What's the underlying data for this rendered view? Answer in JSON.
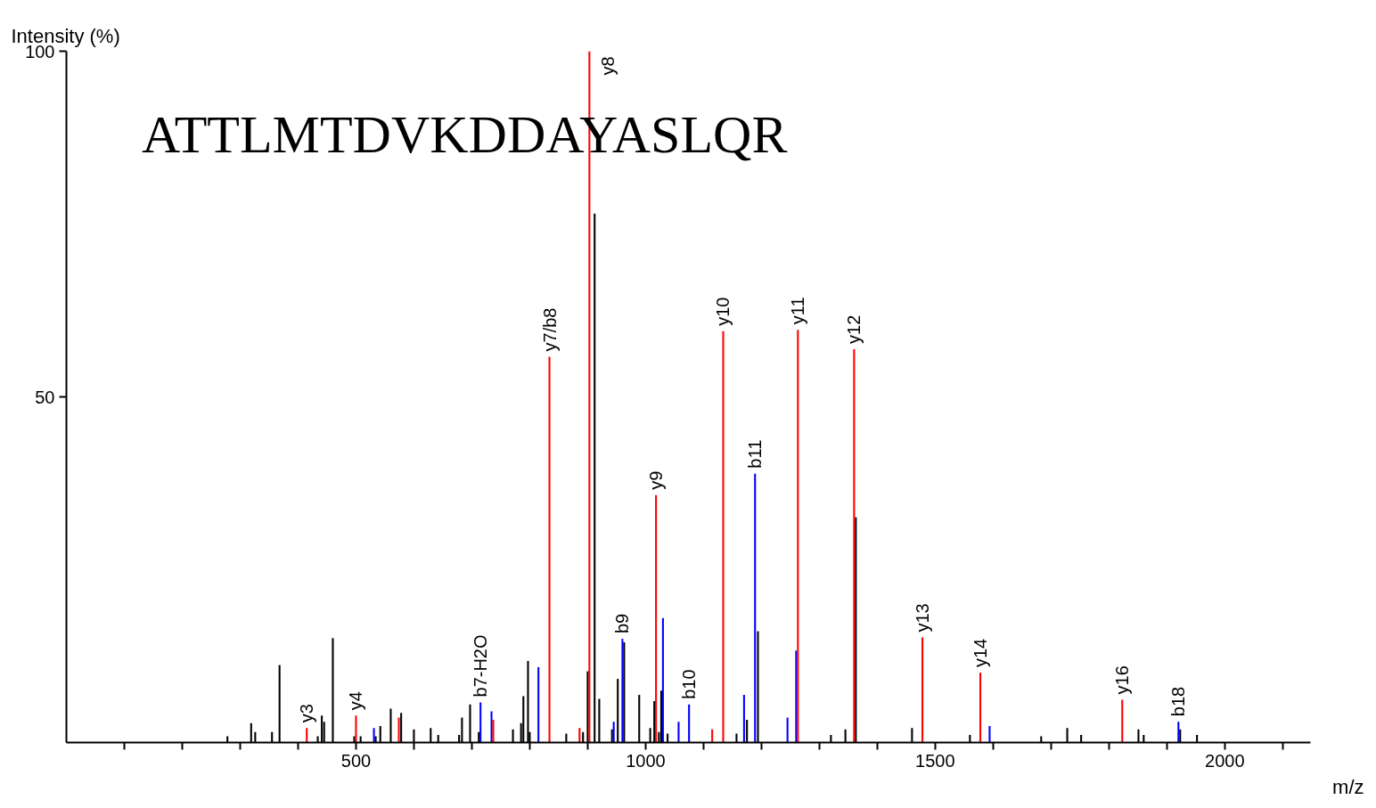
{
  "chart_data": {
    "type": "bar",
    "xlabel": "m/z",
    "ylabel": "Intensity (%)",
    "xlim": [
      0,
      2148
    ],
    "ylim": [
      0,
      100
    ],
    "xticks": [
      {
        "value": 100,
        "label": null
      },
      {
        "value": 200,
        "label": null
      },
      {
        "value": 300,
        "label": null
      },
      {
        "value": 400,
        "label": null
      },
      500,
      {
        "value": 600,
        "label": null
      },
      {
        "value": 700,
        "label": null
      },
      {
        "value": 800,
        "label": null
      },
      {
        "value": 900,
        "label": null
      },
      1000,
      {
        "value": 1100,
        "label": null
      },
      {
        "value": 1200,
        "label": null
      },
      {
        "value": 1300,
        "label": null
      },
      {
        "value": 1400,
        "label": null
      },
      1500,
      {
        "value": 1600,
        "label": null
      },
      {
        "value": 1700,
        "label": null
      },
      {
        "value": 1800,
        "label": null
      },
      {
        "value": 1900,
        "label": null
      },
      2000,
      {
        "value": 2100,
        "label": null
      }
    ],
    "yticks": [
      50,
      100
    ],
    "grid": false,
    "series": [
      {
        "color": "#000000",
        "x": [
          278,
          319,
          326,
          355,
          368,
          434,
          441,
          445,
          460,
          497,
          508,
          534,
          542,
          560,
          578,
          600,
          629,
          642,
          678,
          683,
          697,
          712,
          771,
          785,
          789,
          797,
          800,
          863,
          892,
          900,
          912,
          920,
          942,
          952,
          963,
          989,
          1008,
          1015,
          1023,
          1027,
          1038,
          1157,
          1175,
          1194,
          1320,
          1345,
          1363,
          1460,
          1560,
          1683,
          1728,
          1752,
          1851,
          1860,
          1923,
          1952
        ],
        "values": [
          0.9,
          2.8,
          1.5,
          1.5,
          11.2,
          0.9,
          3.9,
          3.0,
          15.1,
          0.9,
          0.9,
          0.9,
          2.4,
          4.9,
          4.3,
          1.9,
          2.1,
          1.1,
          1.1,
          3.6,
          5.5,
          1.5,
          1.9,
          2.8,
          6.7,
          11.8,
          1.5,
          1.3,
          1.5,
          10.3,
          76.5,
          6.3,
          1.9,
          9.2,
          14.5,
          6.9,
          2.1,
          6.0,
          1.5,
          7.5,
          1.3,
          1.3,
          3.3,
          16.1,
          1.1,
          1.9,
          32.6,
          2.1,
          1.1,
          0.9,
          2.1,
          1.1,
          1.9,
          1.1,
          1.9,
          1.1
        ]
      },
      {
        "color": "#0000ff",
        "x": [
          531,
          715,
          734,
          815,
          945,
          960,
          1030,
          1057,
          1075,
          1170,
          1189,
          1245,
          1260,
          1594,
          1920
        ],
        "values": [
          2.1,
          5.8,
          4.5,
          10.9,
          3.0,
          15.0,
          18.0,
          3.0,
          5.5,
          6.9,
          38.9,
          3.6,
          13.3,
          2.4,
          3.0
        ]
      },
      {
        "color": "#ff0000",
        "x": [
          415,
          500,
          574,
          737,
          834,
          886,
          903,
          1018,
          1115,
          1134,
          1263,
          1360,
          1478,
          1578,
          1823
        ],
        "values": [
          2.1,
          3.9,
          3.6,
          3.3,
          55.8,
          2.1,
          100,
          35.8,
          1.9,
          59.5,
          59.7,
          56.9,
          15.2,
          10.1,
          6.2
        ]
      }
    ],
    "annotations": [
      "ATTLMTDVKDDAYASLQR",
      {
        "text": "y3",
        "x": 415,
        "y": 2.1
      },
      {
        "text": "y4",
        "x": 500,
        "y": 3.9
      },
      {
        "text": "b7-H2O",
        "x": 715,
        "y": 5.8
      },
      {
        "text": "y7/b8",
        "x": 834,
        "y": 55.8
      },
      {
        "text": "y8",
        "x": 903,
        "y": 100
      },
      {
        "text": "b9",
        "x": 960,
        "y": 15.0
      },
      {
        "text": "y9",
        "x": 1018,
        "y": 35.8
      },
      {
        "text": "b10",
        "x": 1075,
        "y": 5.5
      },
      {
        "text": "y10",
        "x": 1134,
        "y": 59.5
      },
      {
        "text": "b11",
        "x": 1189,
        "y": 38.9
      },
      {
        "text": "y11",
        "x": 1263,
        "y": 59.7
      },
      {
        "text": "y12",
        "x": 1360,
        "y": 56.9
      },
      {
        "text": "y13",
        "x": 1478,
        "y": 15.2
      },
      {
        "text": "y14",
        "x": 1578,
        "y": 10.1
      },
      {
        "text": "y16",
        "x": 1823,
        "y": 6.2
      },
      {
        "text": "b18",
        "x": 1920,
        "y": 3.0
      }
    ]
  }
}
